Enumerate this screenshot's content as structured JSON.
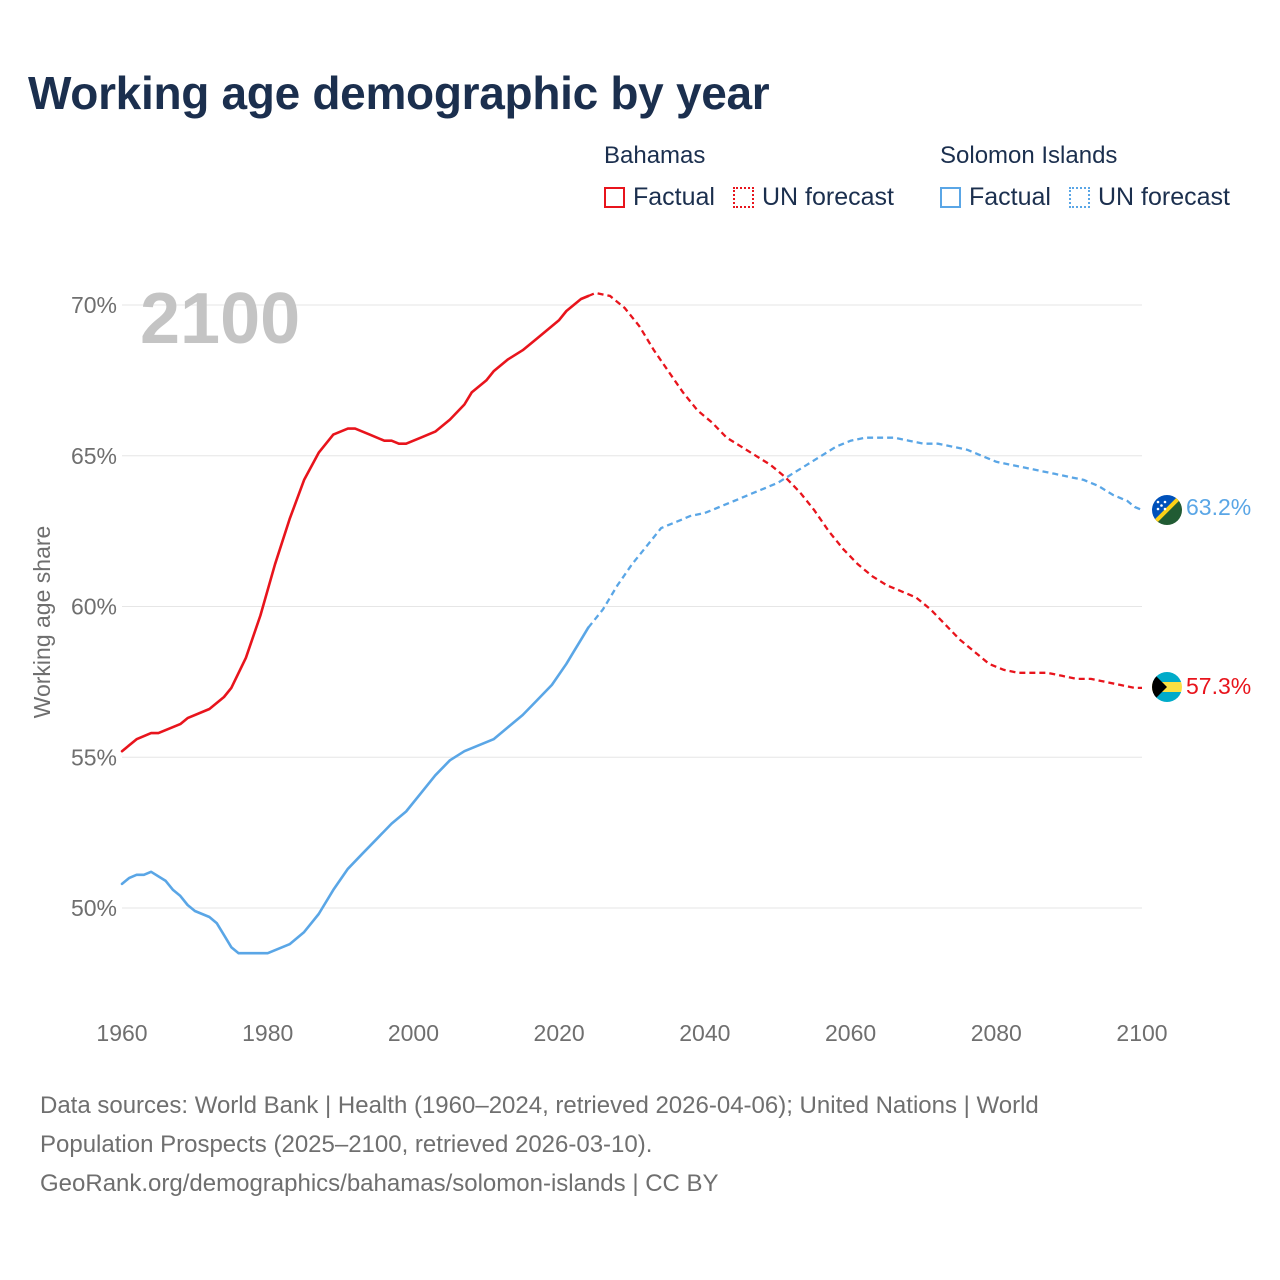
{
  "title": "Working age demographic by year",
  "legend": {
    "groups": [
      {
        "country": "Bahamas",
        "factual": "Factual",
        "forecast": "UN forecast",
        "color": "#e8141c"
      },
      {
        "country": "Solomon Islands",
        "factual": "Factual",
        "forecast": "UN forecast",
        "color": "#5aa6e6"
      }
    ]
  },
  "year_watermark": "2100",
  "footer": {
    "line1": "Data sources: World Bank | Health (1960–2024, retrieved 2026-04-06); United Nations | World",
    "line2": "Population Prospects (2025–2100, retrieved 2026-03-10).",
    "line3": "GeoRank.org/demographics/bahamas/solomon-islands | CC BY"
  },
  "chart_data": {
    "type": "line",
    "title": "Working age demographic by year",
    "xlabel": "",
    "ylabel": "Working age share",
    "xlim": [
      1960,
      2100
    ],
    "ylim": [
      47,
      71.5
    ],
    "x_ticks": [
      1960,
      1980,
      2000,
      2020,
      2040,
      2060,
      2080,
      2100
    ],
    "y_ticks": [
      50,
      55,
      60,
      65,
      70
    ],
    "y_tick_labels": [
      "50%",
      "55%",
      "60%",
      "65%",
      "70%"
    ],
    "grid": true,
    "factual_range": [
      1960,
      2024
    ],
    "forecast_range": [
      2025,
      2100
    ],
    "series": [
      {
        "name": "Bahamas",
        "color": "#e8141c",
        "end_label": "57.3%",
        "flag": "bahamas-flag",
        "points": [
          [
            1960,
            55.2
          ],
          [
            1962,
            55.6
          ],
          [
            1964,
            55.8
          ],
          [
            1965,
            55.8
          ],
          [
            1966,
            55.9
          ],
          [
            1968,
            56.1
          ],
          [
            1969,
            56.3
          ],
          [
            1972,
            56.6
          ],
          [
            1974,
            57.0
          ],
          [
            1975,
            57.3
          ],
          [
            1977,
            58.3
          ],
          [
            1979,
            59.7
          ],
          [
            1981,
            61.4
          ],
          [
            1983,
            62.9
          ],
          [
            1985,
            64.2
          ],
          [
            1987,
            65.1
          ],
          [
            1989,
            65.7
          ],
          [
            1991,
            65.9
          ],
          [
            1992,
            65.9
          ],
          [
            1994,
            65.7
          ],
          [
            1996,
            65.5
          ],
          [
            1997,
            65.5
          ],
          [
            1998,
            65.4
          ],
          [
            1999,
            65.4
          ],
          [
            2001,
            65.6
          ],
          [
            2003,
            65.8
          ],
          [
            2005,
            66.2
          ],
          [
            2007,
            66.7
          ],
          [
            2008,
            67.1
          ],
          [
            2010,
            67.5
          ],
          [
            2011,
            67.8
          ],
          [
            2013,
            68.2
          ],
          [
            2015,
            68.5
          ],
          [
            2017,
            68.9
          ],
          [
            2019,
            69.3
          ],
          [
            2020,
            69.5
          ],
          [
            2021,
            69.8
          ],
          [
            2023,
            70.2
          ],
          [
            2024,
            70.3
          ]
        ],
        "forecast_points": [
          [
            2024,
            70.3
          ],
          [
            2025,
            70.4
          ],
          [
            2027,
            70.3
          ],
          [
            2029,
            69.9
          ],
          [
            2031,
            69.3
          ],
          [
            2033,
            68.5
          ],
          [
            2035,
            67.8
          ],
          [
            2037,
            67.1
          ],
          [
            2039,
            66.5
          ],
          [
            2041,
            66.1
          ],
          [
            2043,
            65.6
          ],
          [
            2045,
            65.3
          ],
          [
            2047,
            65.0
          ],
          [
            2049,
            64.7
          ],
          [
            2051,
            64.3
          ],
          [
            2053,
            63.8
          ],
          [
            2055,
            63.2
          ],
          [
            2057,
            62.5
          ],
          [
            2059,
            61.9
          ],
          [
            2061,
            61.4
          ],
          [
            2063,
            61.0
          ],
          [
            2065,
            60.7
          ],
          [
            2067,
            60.5
          ],
          [
            2069,
            60.3
          ],
          [
            2071,
            59.9
          ],
          [
            2073,
            59.4
          ],
          [
            2075,
            58.9
          ],
          [
            2077,
            58.5
          ],
          [
            2079,
            58.1
          ],
          [
            2081,
            57.9
          ],
          [
            2083,
            57.8
          ],
          [
            2087,
            57.8
          ],
          [
            2089,
            57.7
          ],
          [
            2091,
            57.6
          ],
          [
            2093,
            57.6
          ],
          [
            2095,
            57.5
          ],
          [
            2097,
            57.4
          ],
          [
            2099,
            57.3
          ],
          [
            2100,
            57.3
          ]
        ]
      },
      {
        "name": "Solomon Islands",
        "color": "#5aa6e6",
        "end_label": "63.2%",
        "flag": "solomon-islands-flag",
        "points": [
          [
            1960,
            50.8
          ],
          [
            1961,
            51.0
          ],
          [
            1962,
            51.1
          ],
          [
            1963,
            51.1
          ],
          [
            1964,
            51.2
          ],
          [
            1966,
            50.9
          ],
          [
            1967,
            50.6
          ],
          [
            1968,
            50.4
          ],
          [
            1969,
            50.1
          ],
          [
            1970,
            49.9
          ],
          [
            1972,
            49.7
          ],
          [
            1973,
            49.5
          ],
          [
            1974,
            49.1
          ],
          [
            1975,
            48.7
          ],
          [
            1976,
            48.5
          ],
          [
            1980,
            48.5
          ],
          [
            1983,
            48.8
          ],
          [
            1985,
            49.2
          ],
          [
            1986,
            49.5
          ],
          [
            1987,
            49.8
          ],
          [
            1989,
            50.6
          ],
          [
            1991,
            51.3
          ],
          [
            1993,
            51.8
          ],
          [
            1995,
            52.3
          ],
          [
            1997,
            52.8
          ],
          [
            1999,
            53.2
          ],
          [
            2001,
            53.8
          ],
          [
            2003,
            54.4
          ],
          [
            2005,
            54.9
          ],
          [
            2007,
            55.2
          ],
          [
            2009,
            55.4
          ],
          [
            2011,
            55.6
          ],
          [
            2013,
            56.0
          ],
          [
            2015,
            56.4
          ],
          [
            2017,
            56.9
          ],
          [
            2019,
            57.4
          ],
          [
            2021,
            58.1
          ],
          [
            2022,
            58.5
          ],
          [
            2023,
            58.9
          ],
          [
            2024,
            59.3
          ]
        ],
        "forecast_points": [
          [
            2024,
            59.3
          ],
          [
            2026,
            59.9
          ],
          [
            2028,
            60.7
          ],
          [
            2030,
            61.4
          ],
          [
            2032,
            62.0
          ],
          [
            2034,
            62.6
          ],
          [
            2036,
            62.8
          ],
          [
            2038,
            63.0
          ],
          [
            2040,
            63.1
          ],
          [
            2042,
            63.3
          ],
          [
            2044,
            63.5
          ],
          [
            2046,
            63.7
          ],
          [
            2048,
            63.9
          ],
          [
            2050,
            64.1
          ],
          [
            2052,
            64.4
          ],
          [
            2054,
            64.7
          ],
          [
            2056,
            65.0
          ],
          [
            2058,
            65.3
          ],
          [
            2060,
            65.5
          ],
          [
            2062,
            65.6
          ],
          [
            2064,
            65.6
          ],
          [
            2066,
            65.6
          ],
          [
            2068,
            65.5
          ],
          [
            2070,
            65.4
          ],
          [
            2072,
            65.4
          ],
          [
            2074,
            65.3
          ],
          [
            2076,
            65.2
          ],
          [
            2078,
            65.0
          ],
          [
            2080,
            64.8
          ],
          [
            2082,
            64.7
          ],
          [
            2084,
            64.6
          ],
          [
            2086,
            64.5
          ],
          [
            2088,
            64.4
          ],
          [
            2090,
            64.3
          ],
          [
            2092,
            64.2
          ],
          [
            2094,
            64.0
          ],
          [
            2096,
            63.7
          ],
          [
            2098,
            63.5
          ],
          [
            2099,
            63.3
          ],
          [
            2100,
            63.2
          ]
        ]
      }
    ]
  }
}
